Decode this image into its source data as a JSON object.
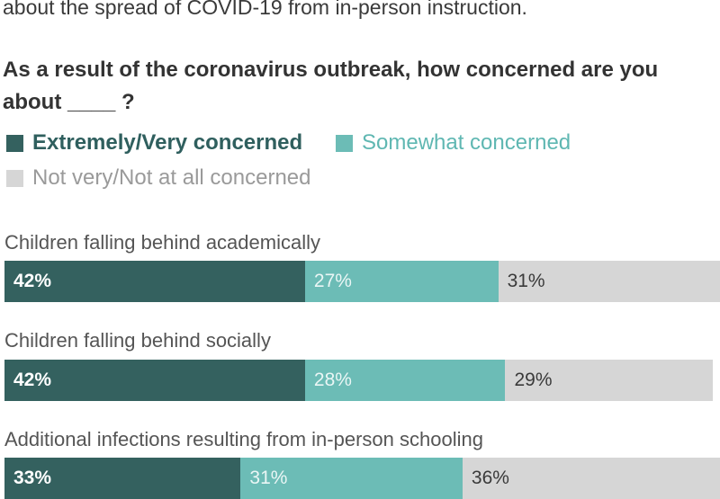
{
  "intro_text": "about the spread of COVID-19 from in-person instruction.",
  "chart_data": {
    "type": "bar",
    "stacked": true,
    "orientation": "horizontal",
    "title": "As a result of the coronavirus outbreak, how concerned are you about ____ ?",
    "categories": [
      "Children falling behind academically",
      "Children falling behind socially",
      "Additional infections resulting from in-person schooling"
    ],
    "series": [
      {
        "name": "Extremely/Very concerned",
        "values": [
          42,
          42,
          33
        ],
        "labels": [
          "42%",
          "42%",
          "33%"
        ],
        "color": "#34615f"
      },
      {
        "name": "Somewhat concerned",
        "values": [
          27,
          28,
          31
        ],
        "labels": [
          "27%",
          "28%",
          "31%"
        ],
        "color": "#6cbcb6"
      },
      {
        "name": "Not very/Not at all concerned",
        "values": [
          31,
          29,
          36
        ],
        "labels": [
          "31%",
          "29%",
          "36%"
        ],
        "color": "#d6d6d6"
      }
    ],
    "xlim": [
      0,
      100
    ],
    "legend_position": "top",
    "grid": false
  }
}
